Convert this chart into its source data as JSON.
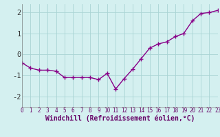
{
  "x": [
    0,
    1,
    2,
    3,
    4,
    5,
    6,
    7,
    8,
    9,
    10,
    11,
    12,
    13,
    14,
    15,
    16,
    17,
    18,
    19,
    20,
    21,
    22,
    23
  ],
  "y": [
    -0.4,
    -0.65,
    -0.75,
    -0.75,
    -0.8,
    -1.1,
    -1.1,
    -1.1,
    -1.1,
    -1.2,
    -0.9,
    -1.65,
    -1.15,
    -0.7,
    -0.2,
    0.3,
    0.5,
    0.6,
    0.85,
    1.0,
    1.6,
    1.95,
    2.0,
    2.1
  ],
  "line_color": "#880088",
  "marker": "P",
  "markersize": 3.5,
  "linewidth": 1.0,
  "xlabel": "Windchill (Refroidissement éolien,°C)",
  "xlim": [
    0,
    23
  ],
  "ylim": [
    -2.5,
    2.4
  ],
  "yticks": [
    -2,
    -1,
    0,
    1,
    2
  ],
  "xticks": [
    0,
    1,
    2,
    3,
    4,
    5,
    6,
    7,
    8,
    9,
    10,
    11,
    12,
    13,
    14,
    15,
    16,
    17,
    18,
    19,
    20,
    21,
    22,
    23
  ],
  "bg_color": "#d4f0f0",
  "grid_color": "#aad4d4",
  "tick_label_fontsize": 5.5,
  "xlabel_fontsize": 7.0,
  "ytick_fontsize": 7.5
}
